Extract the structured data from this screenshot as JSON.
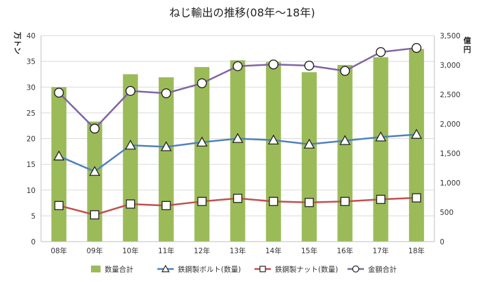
{
  "chart_data": {
    "type": "bar",
    "title": "ねじ輸出の推移(08年～18年)",
    "left_unit": "万トン",
    "right_unit": "億円",
    "categories": [
      "08年",
      "09年",
      "10年",
      "11年",
      "12年",
      "13年",
      "14年",
      "15年",
      "16年",
      "17年",
      "18年"
    ],
    "left_axis": {
      "min": 0,
      "max": 40,
      "step": 5,
      "tick_labels": [
        "0",
        "5",
        "10",
        "15",
        "20",
        "25",
        "30",
        "35",
        "40"
      ]
    },
    "right_axis": {
      "min": 0,
      "max": 3500,
      "step": 500,
      "tick_labels": [
        "0",
        "500",
        "1,000",
        "1,500",
        "2,000",
        "2,500",
        "3,000",
        "3,500"
      ]
    },
    "grid": true,
    "legend_position": "bottom",
    "series": [
      {
        "name": "数量合計",
        "kind": "bar",
        "axis": "left",
        "color": "#9BBB59",
        "values": [
          30.0,
          23.3,
          32.5,
          31.9,
          33.9,
          35.2,
          34.9,
          32.9,
          34.3,
          35.8,
          37.4
        ]
      },
      {
        "name": "鉄鋼製ボルト(数量)",
        "kind": "line",
        "axis": "left",
        "color": "#4F81BD",
        "marker": "triangle",
        "values": [
          16.6,
          13.6,
          18.7,
          18.4,
          19.3,
          20.0,
          19.7,
          18.9,
          19.6,
          20.3,
          20.8
        ]
      },
      {
        "name": "鉄鋼製ナット(数量)",
        "kind": "line",
        "axis": "left",
        "color": "#C0504D",
        "marker": "square",
        "values": [
          7.0,
          5.2,
          7.3,
          7.0,
          7.8,
          8.4,
          7.8,
          7.6,
          7.8,
          8.2,
          8.5
        ]
      },
      {
        "name": "金額合計",
        "kind": "line",
        "axis": "right",
        "color": "#8064A2",
        "marker": "circle",
        "values": [
          2530,
          1920,
          2560,
          2520,
          2690,
          2980,
          3010,
          2990,
          2900,
          3220,
          3290
        ]
      }
    ]
  }
}
